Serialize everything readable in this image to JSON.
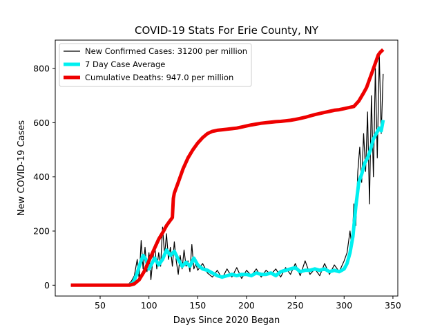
{
  "chart_data": {
    "type": "line",
    "title": "COVID-19 Stats For Erie County, NY",
    "xlabel": "Days Since 2020 Began",
    "ylabel": "New COVID-19 Cases",
    "xlim": [
      4,
      355
    ],
    "ylim": [
      -40,
      905
    ],
    "x_ticks": [
      50,
      100,
      150,
      200,
      250,
      300,
      350
    ],
    "y_ticks": [
      0,
      200,
      400,
      600,
      800
    ],
    "grid": false,
    "legend_position": "top-left",
    "series": [
      {
        "name": "New Confirmed Cases: 31200 per million",
        "color": "#000000",
        "x": [
          20,
          30,
          40,
          50,
          60,
          70,
          78,
          82,
          85,
          88,
          90,
          92,
          94,
          96,
          98,
          100,
          102,
          104,
          106,
          108,
          110,
          112,
          114,
          116,
          118,
          120,
          122,
          124,
          126,
          128,
          130,
          132,
          134,
          136,
          138,
          140,
          142,
          144,
          146,
          148,
          150,
          155,
          160,
          165,
          170,
          175,
          180,
          185,
          190,
          195,
          200,
          205,
          210,
          215,
          220,
          225,
          230,
          235,
          240,
          245,
          250,
          255,
          260,
          265,
          270,
          275,
          280,
          285,
          290,
          295,
          300,
          303,
          306,
          308,
          310,
          312,
          314,
          316,
          318,
          320,
          322,
          324,
          326,
          328,
          330,
          332,
          334,
          336,
          338,
          340
        ],
        "y": [
          0,
          0,
          0,
          0,
          0,
          0,
          0,
          15,
          35,
          95,
          20,
          165,
          60,
          140,
          50,
          120,
          20,
          95,
          150,
          60,
          120,
          70,
          215,
          110,
          190,
          95,
          140,
          70,
          160,
          90,
          40,
          110,
          60,
          130,
          70,
          90,
          50,
          150,
          60,
          80,
          55,
          80,
          45,
          30,
          55,
          25,
          60,
          30,
          65,
          25,
          55,
          35,
          60,
          30,
          55,
          40,
          60,
          30,
          65,
          40,
          80,
          35,
          90,
          40,
          60,
          35,
          80,
          40,
          75,
          50,
          90,
          120,
          200,
          140,
          300,
          220,
          420,
          510,
          380,
          560,
          420,
          640,
          300,
          700,
          400,
          800,
          470,
          850,
          560,
          780
        ]
      },
      {
        "name": "7 Day Case Average",
        "color": "#00f0f0",
        "x": [
          80,
          84,
          88,
          91,
          94,
          97,
          100,
          103,
          106,
          110,
          114,
          118,
          122,
          126,
          130,
          134,
          138,
          142,
          146,
          150,
          155,
          160,
          165,
          170,
          175,
          180,
          185,
          190,
          195,
          200,
          205,
          210,
          215,
          220,
          225,
          230,
          235,
          240,
          245,
          250,
          255,
          260,
          265,
          270,
          275,
          280,
          285,
          290,
          295,
          300,
          303,
          306,
          309,
          312,
          315,
          318,
          321,
          324,
          327,
          330,
          333,
          336,
          338,
          340
        ],
        "y": [
          0,
          10,
          45,
          80,
          110,
          95,
          60,
          80,
          100,
          75,
          95,
          130,
          110,
          125,
          95,
          70,
          85,
          70,
          100,
          75,
          60,
          55,
          45,
          35,
          30,
          35,
          40,
          35,
          40,
          40,
          35,
          45,
          40,
          40,
          45,
          35,
          50,
          55,
          60,
          65,
          50,
          55,
          55,
          60,
          55,
          60,
          50,
          55,
          50,
          60,
          80,
          120,
          180,
          290,
          380,
          410,
          450,
          470,
          500,
          540,
          560,
          580,
          570,
          610
        ]
      },
      {
        "name": "Cumulative Deaths: 947.0 per million",
        "color": "#ee0000",
        "x": [
          20,
          30,
          40,
          50,
          60,
          70,
          80,
          85,
          90,
          95,
          100,
          105,
          110,
          115,
          118,
          121,
          124,
          125,
          126,
          130,
          135,
          140,
          145,
          150,
          155,
          160,
          165,
          170,
          175,
          180,
          185,
          190,
          195,
          200,
          205,
          210,
          215,
          220,
          225,
          230,
          235,
          240,
          245,
          250,
          255,
          260,
          265,
          270,
          275,
          280,
          285,
          290,
          295,
          300,
          305,
          310,
          315,
          320,
          323,
          326,
          329,
          332,
          335,
          337,
          340
        ],
        "y": [
          0,
          0,
          0,
          0,
          0,
          0,
          0,
          5,
          20,
          50,
          90,
          130,
          170,
          200,
          220,
          235,
          250,
          320,
          340,
          380,
          430,
          470,
          500,
          525,
          545,
          560,
          568,
          572,
          574,
          576,
          578,
          580,
          584,
          588,
          592,
          595,
          598,
          600,
          602,
          604,
          605,
          607,
          609,
          612,
          616,
          620,
          625,
          630,
          634,
          638,
          642,
          646,
          648,
          652,
          656,
          660,
          680,
          710,
          730,
          760,
          790,
          820,
          850,
          860,
          870
        ]
      }
    ]
  }
}
